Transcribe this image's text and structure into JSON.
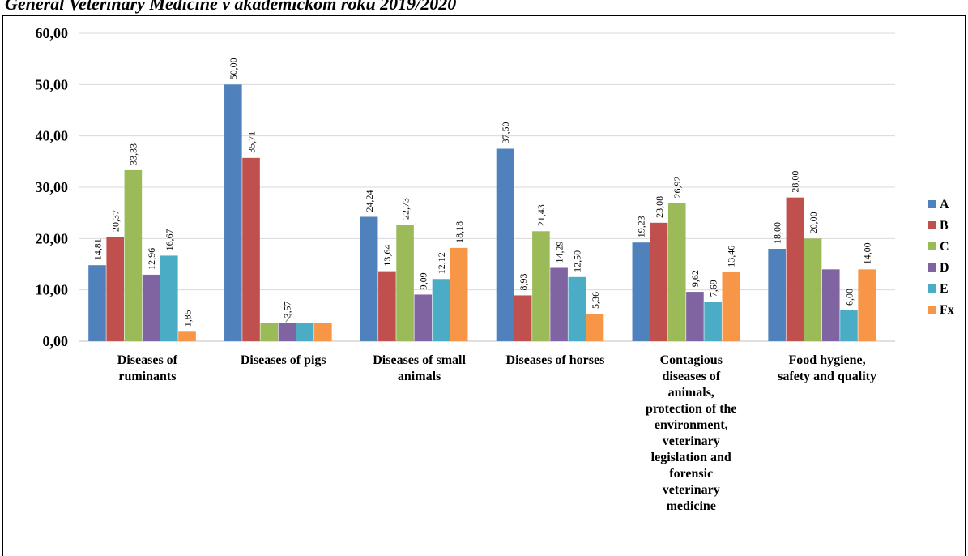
{
  "page": {
    "title": "General Veterinary Medicine v akademickom roku 2019/2020"
  },
  "chart_data": {
    "type": "bar",
    "title": "",
    "xlabel": "",
    "ylabel": "",
    "ylim": [
      0,
      60
    ],
    "yticks": [
      "0,00",
      "10,00",
      "20,00",
      "30,00",
      "40,00",
      "50,00",
      "60,00"
    ],
    "grid": true,
    "legend_position": "right",
    "categories": [
      [
        "Diseases of",
        "ruminants"
      ],
      [
        "Diseases of pigs"
      ],
      [
        "Diseases of small",
        "animals"
      ],
      [
        "Diseases of horses"
      ],
      [
        "Contagious",
        "diseases of",
        "animals,",
        "protection of the",
        "environment,",
        "veterinary",
        "legislation and",
        "forensic",
        "veterinary",
        "medicine"
      ],
      [
        "Food hygiene,",
        "safety and quality"
      ]
    ],
    "series": [
      {
        "name": "A",
        "color": "#4f81bd",
        "values": [
          14.81,
          50.0,
          24.24,
          37.5,
          19.23,
          18.0
        ],
        "labels": [
          "14,81",
          "50,00",
          "24,24",
          "37,50",
          "19,23",
          "18,00"
        ]
      },
      {
        "name": "B",
        "color": "#c0504d",
        "values": [
          20.37,
          35.71,
          13.64,
          8.93,
          23.08,
          28.0
        ],
        "labels": [
          "20,37",
          "35,71",
          "13,64",
          "8,93",
          "23,08",
          "28,00"
        ]
      },
      {
        "name": "C",
        "color": "#9bbb59",
        "values": [
          33.33,
          3.57,
          22.73,
          21.43,
          26.92,
          20.0
        ],
        "labels": [
          "33,33",
          "",
          "22,73",
          "21,43",
          "26,92",
          "20,00"
        ]
      },
      {
        "name": "D",
        "color": "#8064a2",
        "values": [
          12.96,
          3.57,
          9.09,
          14.29,
          9.62,
          14.0
        ],
        "labels": [
          "12,96",
          "3,57",
          "9,09",
          "14,29",
          "9,62",
          ""
        ]
      },
      {
        "name": "E",
        "color": "#4bacc6",
        "values": [
          16.67,
          3.57,
          12.12,
          12.5,
          7.69,
          6.0
        ],
        "labels": [
          "16,67",
          "",
          "12,12",
          "12,50",
          "7,69",
          "6,00"
        ]
      },
      {
        "name": "Fx",
        "color": "#f79646",
        "values": [
          1.85,
          3.57,
          18.18,
          5.36,
          13.46,
          14.0
        ],
        "labels": [
          "1,85",
          "",
          "18,18",
          "5,36",
          "13,46",
          "14,00"
        ]
      }
    ]
  }
}
